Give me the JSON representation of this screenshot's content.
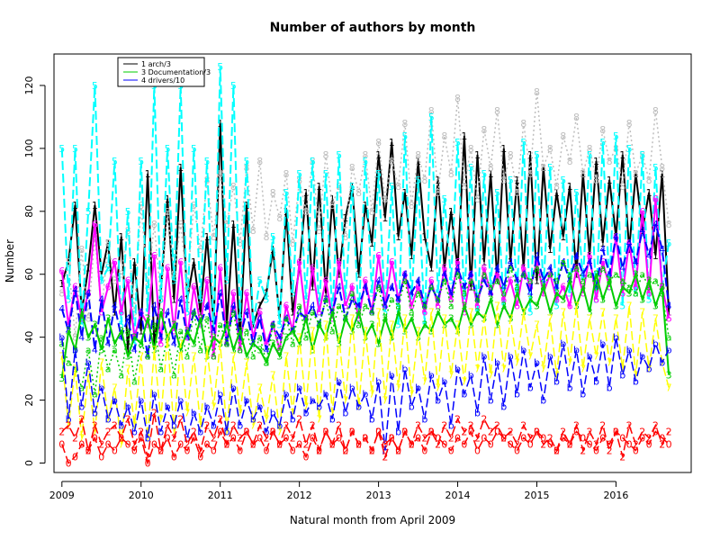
{
  "chart_data": {
    "type": "line",
    "title": "Number of authors by month",
    "xlabel": "Natural month from April 2009",
    "ylabel": "Number",
    "xlim": [
      2008.9,
      2016.95
    ],
    "ylim": [
      -3,
      130
    ],
    "x_ticks": [
      2009,
      2010,
      2011,
      2012,
      2013,
      2014,
      2015,
      2016
    ],
    "y_ticks": [
      0,
      20,
      40,
      60,
      80,
      100,
      120
    ],
    "legend": {
      "placement": "top-left",
      "entries": [
        "1 arch/3",
        "3 Documentation/3",
        "4 drivers/10"
      ]
    },
    "x": [
      2009.0,
      2009.0833,
      2009.1667,
      2009.25,
      2009.3333,
      2009.4167,
      2009.5,
      2009.5833,
      2009.6667,
      2009.75,
      2009.8333,
      2009.9167,
      2010.0,
      2010.0833,
      2010.1667,
      2010.25,
      2010.3333,
      2010.4167,
      2010.5,
      2010.5833,
      2010.6667,
      2010.75,
      2010.8333,
      2010.9167,
      2011.0,
      2011.0833,
      2011.1667,
      2011.25,
      2011.3333,
      2011.4167,
      2011.5,
      2011.5833,
      2011.6667,
      2011.75,
      2011.8333,
      2011.9167,
      2012.0,
      2012.0833,
      2012.1667,
      2012.25,
      2012.3333,
      2012.4167,
      2012.5,
      2012.5833,
      2012.6667,
      2012.75,
      2012.8333,
      2012.9167,
      2013.0,
      2013.0833,
      2013.1667,
      2013.25,
      2013.3333,
      2013.4167,
      2013.5,
      2013.5833,
      2013.6667,
      2013.75,
      2013.8333,
      2013.9167,
      2014.0,
      2014.0833,
      2014.1667,
      2014.25,
      2014.3333,
      2014.4167,
      2014.5,
      2014.5833,
      2014.6667,
      2014.75,
      2014.8333,
      2014.9167,
      2015.0,
      2015.0833,
      2015.1667,
      2015.25,
      2015.3333,
      2015.4167,
      2015.5,
      2015.5833,
      2015.6667,
      2015.75,
      2015.8333,
      2015.9167,
      2016.0,
      2016.0833,
      2016.1667,
      2016.25,
      2016.3333,
      2016.4167,
      2016.5,
      2016.5833,
      2016.6667
    ],
    "series": [
      {
        "marker": "1",
        "color": "#000000",
        "dash": "solid",
        "width": 2,
        "values": [
          57,
          64,
          82,
          48,
          62,
          82,
          60,
          70,
          48,
          72,
          36,
          64,
          42,
          92,
          38,
          54,
          84,
          52,
          94,
          52,
          64,
          48,
          72,
          44,
          108,
          44,
          76,
          40,
          82,
          44,
          50,
          54,
          68,
          46,
          80,
          48,
          62,
          86,
          56,
          88,
          54,
          84,
          60,
          78,
          88,
          60,
          82,
          70,
          98,
          78,
          102,
          72,
          86,
          66,
          96,
          72,
          62,
          90,
          62,
          80,
          62,
          104,
          56,
          98,
          64,
          92,
          58,
          100,
          64,
          90,
          62,
          98,
          58,
          94,
          68,
          86,
          72,
          88,
          60,
          92,
          66,
          96,
          70,
          90,
          72,
          98,
          68,
          92,
          74,
          86,
          66,
          92,
          48
        ]
      },
      {
        "marker": "8",
        "color": "#bebebe",
        "dash": "dotted",
        "width": 1.5,
        "values": [
          54,
          64,
          40,
          68,
          46,
          72,
          48,
          70,
          58,
          60,
          74,
          48,
          82,
          56,
          76,
          52,
          80,
          60,
          76,
          56,
          82,
          68,
          90,
          72,
          92,
          76,
          88,
          70,
          94,
          74,
          96,
          72,
          86,
          78,
          92,
          70,
          90,
          80,
          96,
          74,
          98,
          82,
          88,
          72,
          94,
          86,
          98,
          80,
          102,
          84,
          96,
          88,
          108,
          82,
          98,
          90,
          112,
          86,
          104,
          92,
          116,
          88,
          100,
          84,
          106,
          94,
          112,
          90,
          98,
          86,
          108,
          92,
          118,
          94,
          100,
          88,
          104,
          96,
          110,
          92,
          100,
          90,
          106,
          96,
          100,
          88,
          108,
          92,
          98,
          90,
          112,
          94,
          76
        ]
      },
      {
        "marker": "5",
        "color": "#00ffff",
        "dash": "dashed",
        "width": 2,
        "values": [
          100,
          52,
          100,
          44,
          80,
          120,
          58,
          62,
          96,
          44,
          80,
          38,
          96,
          48,
          120,
          52,
          100,
          58,
          120,
          48,
          100,
          52,
          96,
          42,
          126,
          58,
          120,
          46,
          96,
          44,
          58,
          52,
          72,
          44,
          86,
          54,
          92,
          52,
          96,
          48,
          92,
          46,
          98,
          52,
          88,
          46,
          96,
          54,
          92,
          48,
          88,
          44,
          104,
          52,
          90,
          44,
          110,
          54,
          84,
          58,
          102,
          52,
          94,
          48,
          92,
          56,
          86,
          50,
          90,
          54,
          102,
          48,
          98,
          56,
          94,
          50,
          90,
          54,
          86,
          58,
          98,
          52,
          102,
          56,
          104,
          50,
          100,
          54,
          98,
          52,
          94,
          56,
          70
        ]
      },
      {
        "marker": "6",
        "color": "#ff00ff",
        "dash": "solid",
        "width": 2,
        "values": [
          61,
          44,
          56,
          46,
          54,
          76,
          48,
          56,
          64,
          48,
          58,
          40,
          48,
          44,
          66,
          38,
          62,
          42,
          64,
          40,
          56,
          44,
          58,
          34,
          62,
          38,
          54,
          36,
          54,
          40,
          48,
          38,
          44,
          36,
          50,
          42,
          64,
          46,
          62,
          48,
          58,
          46,
          64,
          50,
          56,
          46,
          58,
          48,
          66,
          50,
          64,
          52,
          60,
          50,
          56,
          48,
          58,
          50,
          62,
          52,
          64,
          48,
          60,
          50,
          62,
          54,
          60,
          52,
          58,
          50,
          62,
          56,
          64,
          54,
          60,
          52,
          56,
          50,
          62,
          54,
          66,
          52,
          64,
          56,
          72,
          54,
          70,
          56,
          80,
          54,
          84,
          56,
          46
        ]
      },
      {
        "marker": "4",
        "color": "#0000ff",
        "dash": "dashed",
        "width": 2,
        "values": [
          49,
          42,
          55,
          40,
          54,
          36,
          52,
          38,
          50,
          40,
          46,
          36,
          48,
          34,
          50,
          40,
          48,
          38,
          52,
          40,
          48,
          44,
          50,
          42,
          54,
          38,
          50,
          40,
          48,
          38,
          46,
          36,
          44,
          40,
          46,
          42,
          48,
          46,
          50,
          44,
          52,
          48,
          56,
          46,
          52,
          50,
          56,
          48,
          58,
          50,
          56,
          52,
          60,
          54,
          58,
          50,
          56,
          52,
          60,
          54,
          62,
          56,
          60,
          52,
          58,
          54,
          62,
          56,
          64,
          58,
          60,
          54,
          66,
          58,
          62,
          56,
          64,
          58,
          66,
          60,
          64,
          56,
          68,
          60,
          72,
          62,
          70,
          64,
          74,
          66,
          76,
          68,
          50
        ]
      },
      {
        "marker": "3",
        "color": "#00cd00",
        "dash": "solid",
        "width": 2,
        "values": [
          27,
          42,
          36,
          48,
          40,
          44,
          36,
          46,
          38,
          42,
          34,
          40,
          38,
          46,
          36,
          48,
          40,
          44,
          36,
          42,
          38,
          46,
          34,
          40,
          38,
          44,
          36,
          42,
          34,
          38,
          36,
          32,
          38,
          34,
          40,
          42,
          38,
          46,
          36,
          44,
          40,
          48,
          38,
          46,
          42,
          48,
          40,
          44,
          38,
          46,
          40,
          48,
          42,
          46,
          40,
          44,
          42,
          48,
          44,
          46,
          42,
          50,
          44,
          48,
          46,
          52,
          44,
          50,
          46,
          54,
          48,
          52,
          50,
          56,
          48,
          54,
          52,
          58,
          50,
          56,
          48,
          60,
          52,
          58,
          50,
          56,
          54,
          60,
          52,
          58,
          50,
          56,
          28
        ]
      },
      {
        "marker": "a",
        "color": "#00cd00",
        "dash": "dotted",
        "width": 1.5,
        "values": [
          38,
          32,
          30,
          24,
          36,
          22,
          40,
          30,
          36,
          28,
          42,
          26,
          38,
          34,
          44,
          30,
          40,
          28,
          42,
          34,
          48,
          36,
          46,
          34,
          44,
          38,
          48,
          36,
          42,
          34,
          40,
          32,
          44,
          36,
          46,
          38,
          50,
          40,
          48,
          44,
          52,
          42,
          50,
          46,
          54,
          44,
          50,
          48,
          56,
          46,
          52,
          50,
          58,
          48,
          54,
          50,
          56,
          52,
          58,
          50,
          60,
          54,
          58,
          52,
          60,
          56,
          58,
          54,
          62,
          56,
          60,
          58,
          62,
          56,
          60,
          58,
          64,
          60,
          62,
          58,
          60,
          56,
          62,
          58,
          60,
          58,
          56,
          54,
          60,
          56,
          58,
          54,
          40
        ]
      },
      {
        "marker": "7",
        "color": "#ffff00",
        "dash": "dashed",
        "width": 1.5,
        "values": [
          34,
          12,
          30,
          8,
          28,
          10,
          32,
          14,
          24,
          6,
          30,
          12,
          34,
          8,
          36,
          14,
          40,
          10,
          38,
          16,
          34,
          12,
          36,
          18,
          38,
          10,
          34,
          16,
          32,
          12,
          24,
          14,
          28,
          10,
          34,
          16,
          40,
          18,
          42,
          14,
          44,
          16,
          40,
          20,
          46,
          18,
          42,
          22,
          48,
          20,
          44,
          24,
          46,
          22,
          42,
          26,
          48,
          24,
          46,
          28,
          44,
          26,
          48,
          30,
          46,
          28,
          50,
          30,
          46,
          32,
          48,
          34,
          44,
          30,
          46,
          28,
          48,
          32,
          50,
          30,
          46,
          34,
          48,
          32,
          46,
          30,
          50,
          28,
          48,
          30,
          46,
          32,
          24
        ]
      },
      {
        "marker": "b",
        "color": "#0000ff",
        "dash": "dashed",
        "width": 1.5,
        "values": [
          40,
          14,
          36,
          18,
          32,
          16,
          24,
          14,
          20,
          12,
          18,
          10,
          20,
          8,
          22,
          10,
          18,
          12,
          20,
          8,
          16,
          10,
          18,
          12,
          22,
          10,
          24,
          12,
          20,
          14,
          18,
          10,
          16,
          12,
          22,
          14,
          24,
          16,
          20,
          18,
          22,
          14,
          26,
          16,
          24,
          18,
          22,
          14,
          26,
          4,
          28,
          10,
          30,
          18,
          24,
          14,
          28,
          20,
          26,
          12,
          30,
          22,
          28,
          16,
          34,
          20,
          32,
          18,
          34,
          22,
          36,
          24,
          32,
          20,
          34,
          26,
          38,
          24,
          36,
          22,
          34,
          26,
          38,
          24,
          40,
          28,
          36,
          26,
          34,
          30,
          38,
          32,
          36
        ]
      },
      {
        "marker": "2",
        "color": "#ff0000",
        "dash": "dashed",
        "width": 1.5,
        "values": [
          10,
          12,
          8,
          14,
          4,
          12,
          6,
          10,
          12,
          8,
          14,
          6,
          10,
          2,
          16,
          4,
          12,
          8,
          14,
          6,
          10,
          4,
          12,
          8,
          14,
          6,
          12,
          8,
          10,
          6,
          12,
          8,
          10,
          6,
          12,
          8,
          14,
          6,
          12,
          4,
          10,
          6,
          12,
          4,
          10,
          6,
          8,
          4,
          10,
          2,
          8,
          4,
          10,
          6,
          12,
          8,
          10,
          6,
          12,
          8,
          14,
          10,
          12,
          8,
          14,
          10,
          12,
          8,
          10,
          6,
          12,
          8,
          10,
          6,
          8,
          4,
          10,
          6,
          12,
          4,
          10,
          6,
          12,
          4,
          10,
          2,
          12,
          6,
          10,
          8,
          12,
          6,
          10
        ]
      },
      {
        "marker": "0",
        "color": "#ff0000",
        "dash": "dashed",
        "width": 1.5,
        "values": [
          6,
          0,
          2,
          6,
          4,
          8,
          2,
          6,
          4,
          8,
          6,
          4,
          8,
          0,
          6,
          4,
          8,
          2,
          6,
          4,
          8,
          2,
          6,
          4,
          10,
          6,
          8,
          4,
          10,
          6,
          8,
          4,
          10,
          6,
          8,
          4,
          6,
          2,
          8,
          4,
          10,
          6,
          8,
          4,
          10,
          6,
          8,
          4,
          10,
          6,
          8,
          4,
          10,
          6,
          8,
          4,
          10,
          8,
          6,
          4,
          8,
          6,
          10,
          4,
          8,
          6,
          10,
          8,
          6,
          4,
          8,
          6,
          10,
          8,
          6,
          4,
          8,
          6,
          10,
          8,
          6,
          4,
          8,
          6,
          10,
          8,
          6,
          4,
          8,
          6,
          10,
          8,
          6
        ]
      }
    ]
  }
}
